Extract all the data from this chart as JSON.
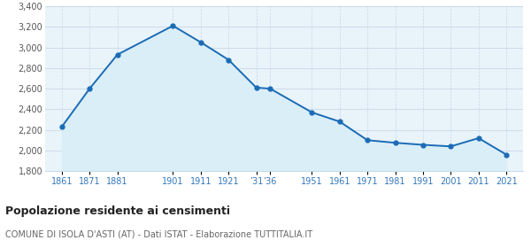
{
  "x_labels": [
    "1861",
    "1871",
    "1881",
    "1901",
    "1911",
    "1921",
    "’31",
    "’36",
    "1951",
    "1961",
    "1971",
    "1981",
    "1991",
    "2001",
    "2011",
    "2021"
  ],
  "x_years": [
    1861,
    1871,
    1881,
    1901,
    1911,
    1921,
    1931,
    1936,
    1951,
    1961,
    1971,
    1981,
    1991,
    2001,
    2011,
    2021
  ],
  "y_values": [
    2230,
    2600,
    2930,
    3210,
    3050,
    2880,
    2610,
    2600,
    2370,
    2280,
    2100,
    2075,
    2055,
    2040,
    2120,
    1960
  ],
  "ylim": [
    1800,
    3400
  ],
  "yticks": [
    1800,
    2000,
    2200,
    2400,
    2600,
    2800,
    3000,
    3200,
    3400
  ],
  "xlim_min": 1855,
  "xlim_max": 2027,
  "line_color": "#1b6cb5",
  "fill_color": "#daeef8",
  "marker_color": "#1b6cb5",
  "grid_color": "#c8d8e8",
  "bg_color": "#e8f3fa",
  "outer_bg": "#ffffff",
  "title": "Popolazione residente ai censimenti",
  "subtitle": "COMUNE DI ISOLA D'ASTI (AT) - Dati ISTAT - Elaborazione TUTTITALIA.IT",
  "title_color": "#222222",
  "subtitle_color": "#666666",
  "xlabel_color": "#3377bb",
  "ylabel_color": "#555555"
}
